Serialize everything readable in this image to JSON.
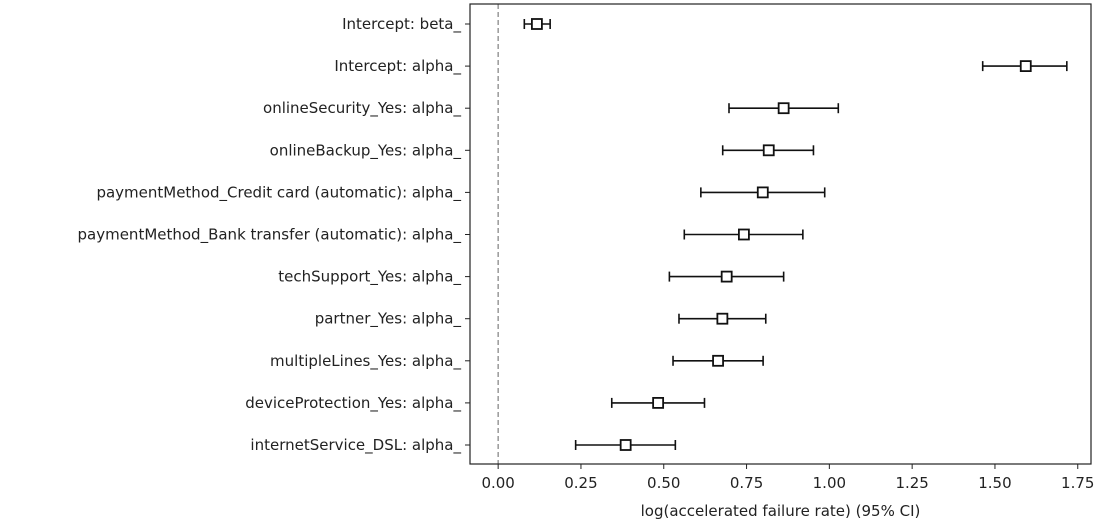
{
  "chart_data": {
    "type": "scatter",
    "xlabel": "log(accelerated failure rate) (95% CI)",
    "xlim": [
      -0.085,
      1.79
    ],
    "xticks": [
      0.0,
      0.25,
      0.5,
      0.75,
      1.0,
      1.25,
      1.5,
      1.75
    ],
    "xtick_labels": [
      "0.00",
      "0.25",
      "0.50",
      "0.75",
      "1.00",
      "1.25",
      "1.50",
      "1.75"
    ],
    "reference_line_x": 0,
    "grid": false,
    "rows": [
      {
        "label": "Intercept: beta_",
        "coef": 0.117,
        "lower": 0.079,
        "upper": 0.157
      },
      {
        "label": "Intercept: alpha_",
        "coef": 1.593,
        "lower": 1.463,
        "upper": 1.717
      },
      {
        "label": "onlineSecurity_Yes: alpha_",
        "coef": 0.862,
        "lower": 0.697,
        "upper": 1.027
      },
      {
        "label": "onlineBackup_Yes: alpha_",
        "coef": 0.817,
        "lower": 0.678,
        "upper": 0.952
      },
      {
        "label": "paymentMethod_Credit card (automatic): alpha_",
        "coef": 0.799,
        "lower": 0.612,
        "upper": 0.986
      },
      {
        "label": "paymentMethod_Bank transfer (automatic): alpha_",
        "coef": 0.742,
        "lower": 0.562,
        "upper": 0.92
      },
      {
        "label": "techSupport_Yes: alpha_",
        "coef": 0.69,
        "lower": 0.517,
        "upper": 0.862
      },
      {
        "label": "partner_Yes: alpha_",
        "coef": 0.677,
        "lower": 0.546,
        "upper": 0.808
      },
      {
        "label": "multipleLines_Yes: alpha_",
        "coef": 0.664,
        "lower": 0.528,
        "upper": 0.8
      },
      {
        "label": "deviceProtection_Yes: alpha_",
        "coef": 0.483,
        "lower": 0.343,
        "upper": 0.623
      },
      {
        "label": "internetService_DSL: alpha_",
        "coef": 0.385,
        "lower": 0.234,
        "upper": 0.535
      }
    ]
  }
}
